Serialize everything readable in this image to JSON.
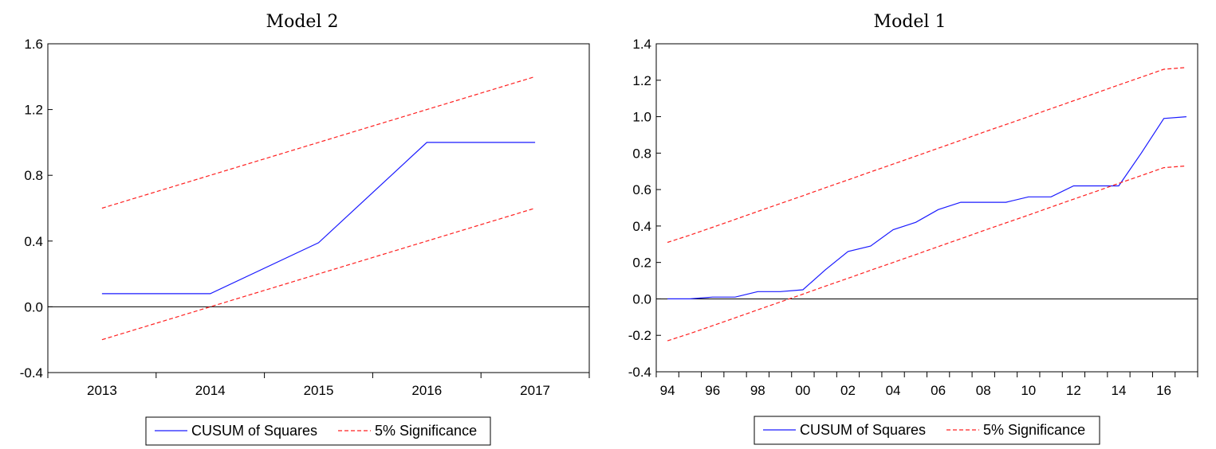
{
  "colors": {
    "cusum": "#1a1aff",
    "significance": "#ff2020",
    "axis": "#000000",
    "zero_line": "#000000"
  },
  "chart_data": [
    {
      "type": "line",
      "title": "Model 2",
      "xlabel": "",
      "ylabel": "",
      "x": [
        2013,
        2014,
        2015,
        2016,
        2017
      ],
      "x_tick_labels": [
        "2013",
        "2014",
        "2015",
        "2016",
        "2017"
      ],
      "xlim": [
        2012.5,
        2017.5
      ],
      "ylim": [
        -0.4,
        1.6
      ],
      "y_ticks": [
        "-0.4",
        "0.0",
        "0.4",
        "0.8",
        "1.2",
        "1.6"
      ],
      "zero_line": true,
      "grid": false,
      "legend_position": "bottom-center",
      "series": [
        {
          "name": "CUSUM of Squares",
          "style": "solid",
          "values": [
            0.08,
            0.08,
            0.39,
            1.0,
            1.0
          ]
        },
        {
          "name": "5% Significance",
          "style": "dashed",
          "values": [
            0.6,
            0.8,
            1.0,
            1.2,
            1.4
          ]
        },
        {
          "name": "",
          "style": "dashed",
          "values": [
            -0.2,
            0.0,
            0.2,
            0.4,
            0.6
          ]
        }
      ]
    },
    {
      "type": "line",
      "title": "Model 1",
      "xlabel": "",
      "ylabel": "",
      "x": [
        1994,
        1995,
        1996,
        1997,
        1998,
        1999,
        2000,
        2001,
        2002,
        2003,
        2004,
        2005,
        2006,
        2007,
        2008,
        2009,
        2010,
        2011,
        2012,
        2013,
        2014,
        2015,
        2016,
        2017
      ],
      "x_ticks": [
        1994,
        1996,
        1998,
        2000,
        2002,
        2004,
        2006,
        2008,
        2010,
        2012,
        2014,
        2016
      ],
      "x_tick_labels": [
        "94",
        "96",
        "98",
        "00",
        "02",
        "04",
        "06",
        "08",
        "10",
        "12",
        "14",
        "16"
      ],
      "xlim": [
        1993.5,
        2017.5
      ],
      "ylim": [
        -0.4,
        1.4
      ],
      "y_ticks": [
        "-0.4",
        "-0.2",
        "0.0",
        "0.2",
        "0.4",
        "0.6",
        "0.8",
        "1.0",
        "1.2",
        "1.4"
      ],
      "zero_line": true,
      "grid": false,
      "legend_position": "bottom-center",
      "series": [
        {
          "name": "CUSUM of Squares",
          "style": "solid",
          "values": [
            0.0,
            0.0,
            0.01,
            0.01,
            0.04,
            0.04,
            0.05,
            0.16,
            0.26,
            0.29,
            0.38,
            0.42,
            0.49,
            0.53,
            0.53,
            0.53,
            0.56,
            0.56,
            0.62,
            0.62,
            0.62,
            0.8,
            0.99,
            1.0
          ]
        },
        {
          "name": "5% Significance",
          "style": "dashed",
          "values": [
            0.31,
            0.35,
            0.393,
            0.436,
            0.48,
            0.523,
            0.566,
            0.61,
            0.653,
            0.697,
            0.74,
            0.783,
            0.827,
            0.87,
            0.914,
            0.957,
            1.0,
            1.044,
            1.087,
            1.13,
            1.174,
            1.217,
            1.26,
            1.27
          ]
        },
        {
          "name": "",
          "style": "dashed",
          "values": [
            -0.23,
            -0.19,
            -0.147,
            -0.104,
            -0.06,
            -0.017,
            0.026,
            0.07,
            0.113,
            0.157,
            0.2,
            0.243,
            0.287,
            0.33,
            0.374,
            0.417,
            0.46,
            0.504,
            0.547,
            0.59,
            0.634,
            0.677,
            0.72,
            0.73
          ]
        }
      ]
    }
  ]
}
